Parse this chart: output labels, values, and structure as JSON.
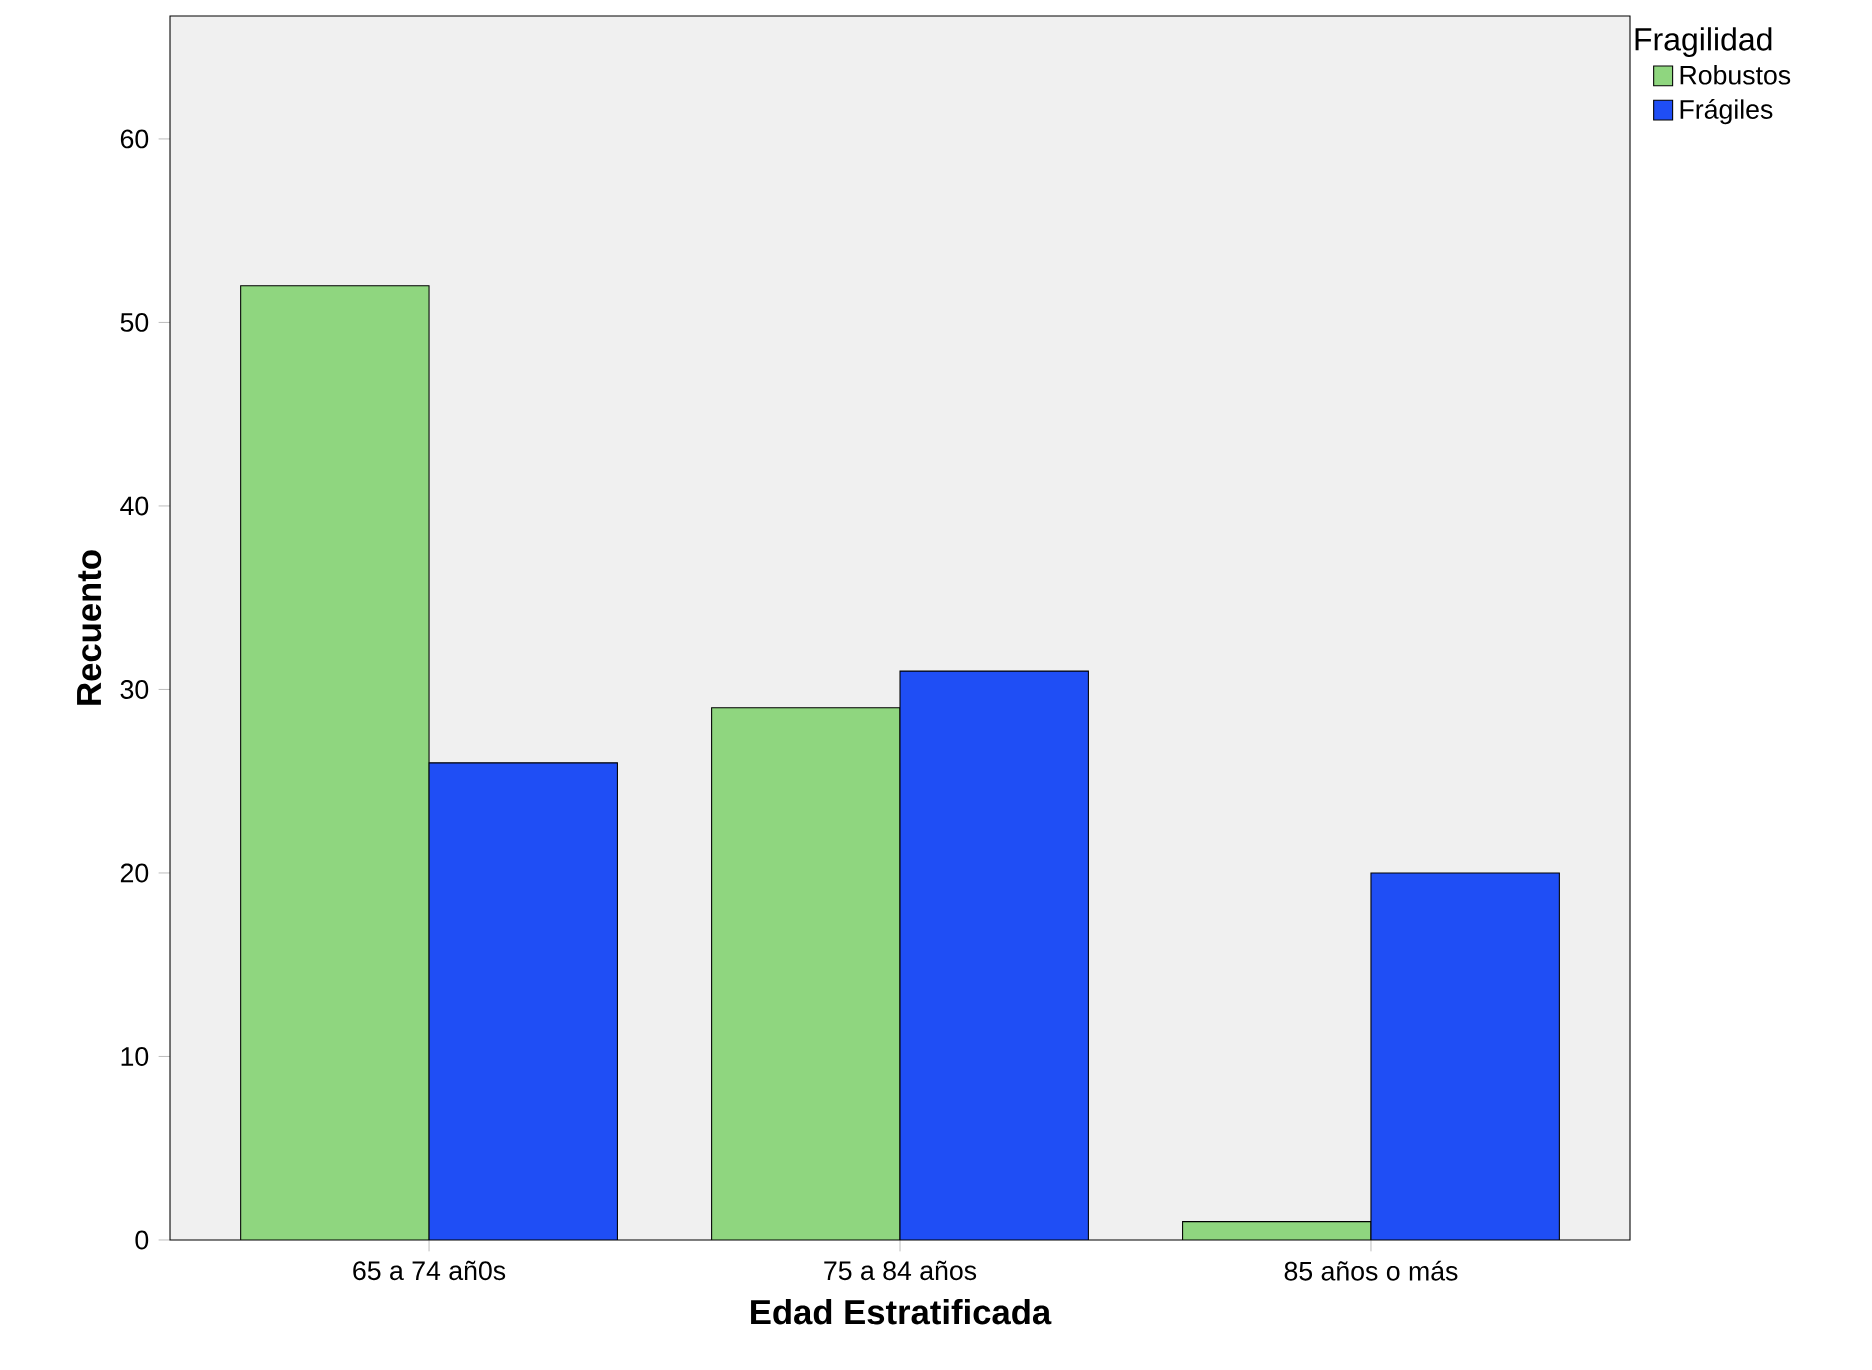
{
  "chart_data": {
    "type": "bar",
    "xlabel": "Edad Estratificada",
    "ylabel": "Recuento",
    "legend_title": "Fragilidad",
    "legend": "top right",
    "categories": [
      "65 a 74 añ0s",
      "75 a 84 años",
      "85 años o más"
    ],
    "series": [
      {
        "name": "Robustos",
        "color": "#8fd67f",
        "values": [
          52,
          29,
          1
        ]
      },
      {
        "name": "Frágiles",
        "color": "#1f4ef5",
        "values": [
          26,
          31,
          20
        ]
      }
    ],
    "ylim": [
      0,
      66.7
    ],
    "yticks": [
      0,
      10,
      20,
      30,
      40,
      50,
      60
    ],
    "grid": false
  }
}
